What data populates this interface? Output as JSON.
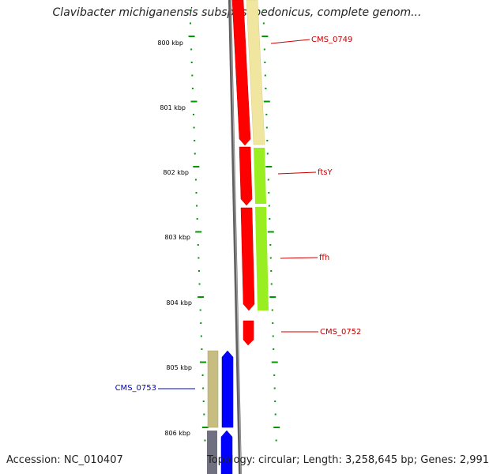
{
  "title": "Clavibacter michiganensis subsp. sepedonicus, complete genom...",
  "footer": {
    "accession": "Accession: NC_010407",
    "summary": "Topology: circular; Length: 3,258,645 bp; Genes: 2,991"
  },
  "scale": {
    "labels": [
      "800 kbp",
      "801 kbp",
      "802 kbp",
      "803 kbp",
      "804 kbp",
      "805 kbp",
      "806 kbp"
    ]
  },
  "genes": [
    {
      "label": "CMS_0749",
      "strand": "forward",
      "color": "#c00000"
    },
    {
      "label": "ftsY",
      "strand": "forward",
      "color": "#c00000"
    },
    {
      "label": "ffh",
      "strand": "forward",
      "color": "#c00000"
    },
    {
      "label": "CMS_0752",
      "strand": "forward",
      "color": "#c00000"
    },
    {
      "label": "CMS_0753",
      "strand": "reverse",
      "color": "#0000cc"
    }
  ],
  "colors": {
    "tick": "#009900",
    "backbone": "#808080",
    "forward_cds": "#ff0000",
    "reverse_cds": "#0000ff",
    "cog_khaki": "#f0e6a0",
    "cog_green": "#99ee22",
    "cog_olive": "#c8bd80",
    "cog_gray": "#707080"
  }
}
